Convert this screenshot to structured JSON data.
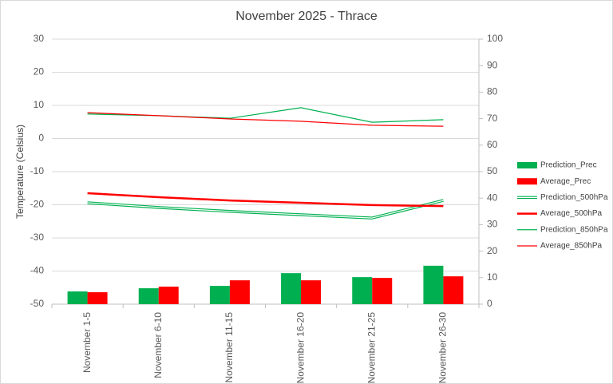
{
  "chart_data": {
    "type": "bar-line",
    "title": "November 2025 - Thrace",
    "y_label": "Temperature (Celsius)",
    "categories": [
      "November 1-5",
      "November 6-10",
      "November 11-15",
      "November 16-20",
      "November 21-25",
      "November 26-30"
    ],
    "ylim": [
      -50,
      30
    ],
    "yticks": [
      -50,
      -40,
      -30,
      -20,
      -10,
      0,
      10,
      20,
      30
    ],
    "y2lim": [
      0,
      100
    ],
    "y2ticks": [
      0,
      10,
      20,
      30,
      40,
      50,
      60,
      70,
      80,
      90,
      100
    ],
    "grid": true,
    "legend": "right",
    "series": [
      {
        "name": "Prediction_Prec",
        "type": "bar",
        "axis": "y2",
        "color": "#00b050",
        "values": [
          4.8,
          6.0,
          6.9,
          11.7,
          10.2,
          14.5
        ]
      },
      {
        "name": "Average_Prec",
        "type": "bar",
        "axis": "y2",
        "color": "#ff0000",
        "values": [
          4.5,
          6.6,
          9.0,
          9.0,
          9.9,
          10.5
        ]
      },
      {
        "name": "Prediction_500hPa",
        "type": "line",
        "line_style": "double",
        "color": "#00b050",
        "values": [
          -19.4,
          -20.8,
          -22.0,
          -23.0,
          -24.0,
          -18.7
        ]
      },
      {
        "name": "Average_500hPa",
        "type": "line",
        "line_style": "thick",
        "color": "#ff0000",
        "values": [
          -16.5,
          -17.7,
          -18.7,
          -19.4,
          -20.1,
          -20.4
        ]
      },
      {
        "name": "Prediction_850hPa",
        "type": "line",
        "line_style": "thin",
        "color": "#00b050",
        "values": [
          7.4,
          6.9,
          6.1,
          9.3,
          4.9,
          5.7
        ]
      },
      {
        "name": "Average_850hPa",
        "type": "line",
        "line_style": "thin",
        "color": "#ff0000",
        "values": [
          7.8,
          6.9,
          5.9,
          5.2,
          4.0,
          3.7
        ]
      }
    ]
  }
}
